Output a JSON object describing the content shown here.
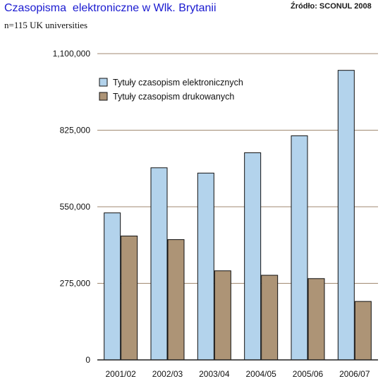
{
  "header": {
    "title": "Czasopisma  elektroniczne w Wlk. Brytanii",
    "source": "Źródło: SCONUL 2008",
    "subtitle": "n=115 UK universities"
  },
  "colors": {
    "electronic": "#b3d3ec",
    "print": "#ad9476",
    "grid": "#a08a72",
    "axis": "#222222",
    "title": "#1a1ad0"
  },
  "chart_data": {
    "type": "bar",
    "title": "Czasopisma  elektroniczne w Wlk. Brytanii",
    "subtitle": "n=115 UK universities",
    "source": "Źródło: SCONUL 2008",
    "xlabel": "",
    "ylabel": "",
    "categories": [
      "2001/02",
      "2002/03",
      "2003/04",
      "2004/05",
      "2005/06",
      "2006/07"
    ],
    "series": [
      {
        "name": "Tytuły czasopism elektronicznych",
        "color": "#b3d3ec",
        "values": [
          528000,
          690000,
          671000,
          744000,
          805000,
          1040000
        ]
      },
      {
        "name": "Tytuły czasopism drukowanych",
        "color": "#ad9476",
        "values": [
          445000,
          432000,
          320000,
          304000,
          292000,
          210000
        ]
      }
    ],
    "ylim": [
      0,
      1100000
    ],
    "yticks": [
      0,
      275000,
      550000,
      825000,
      1100000
    ],
    "ytick_labels": [
      "0",
      "275,000",
      "550,000",
      "825,000",
      "1,100,000"
    ],
    "grid": true,
    "legend_position": "top-left"
  }
}
